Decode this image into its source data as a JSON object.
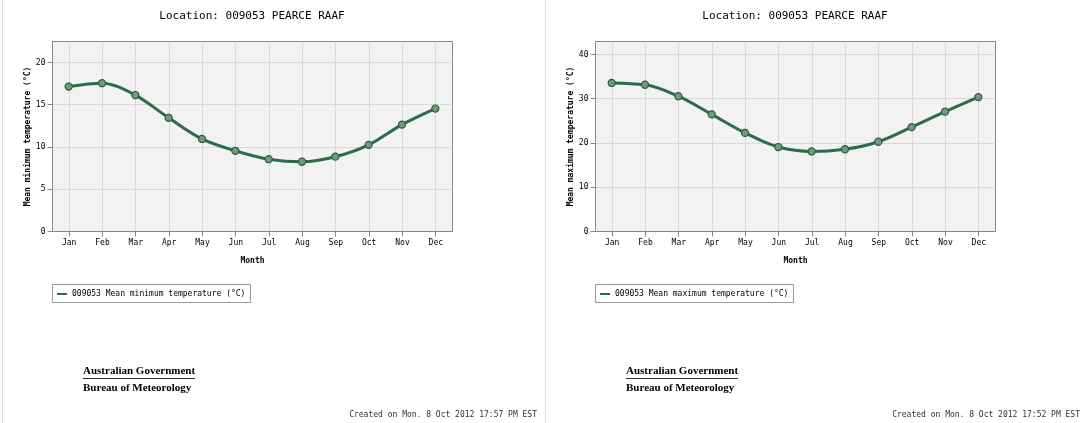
{
  "chart_data": [
    {
      "type": "line",
      "title": "Location: 009053 PEARCE RAAF",
      "xlabel": "Month",
      "ylabel": "Mean minimum temperature (°C)",
      "categories": [
        "Jan",
        "Feb",
        "Mar",
        "Apr",
        "May",
        "Jun",
        "Jul",
        "Aug",
        "Sep",
        "Oct",
        "Nov",
        "Dec"
      ],
      "series": [
        {
          "name": "009053 Mean minimum temperature (°C)",
          "color": "#2e6b4a",
          "values": [
            17.1,
            17.5,
            16.1,
            13.4,
            10.9,
            9.5,
            8.5,
            8.2,
            8.8,
            10.2,
            12.6,
            14.5
          ]
        }
      ],
      "ylim": [
        0,
        22.5
      ],
      "yticks": [
        0,
        5,
        10,
        15,
        20
      ],
      "grid": true,
      "marker": "circle",
      "legend": "bottom",
      "annotations": [
        "Australian Government",
        "Bureau of Meteorology",
        "Created on Mon. 8 Oct 2012 17:57 PM EST"
      ]
    },
    {
      "type": "line",
      "title": "Location: 009053 PEARCE RAAF",
      "xlabel": "Month",
      "ylabel": "Mean maximum temperature (°C)",
      "categories": [
        "Jan",
        "Feb",
        "Mar",
        "Apr",
        "May",
        "Jun",
        "Jul",
        "Aug",
        "Sep",
        "Oct",
        "Nov",
        "Dec"
      ],
      "series": [
        {
          "name": "009053 Mean maximum temperature (°C)",
          "color": "#2e6b4a",
          "values": [
            33.5,
            33.1,
            30.5,
            26.4,
            22.2,
            19.0,
            18.0,
            18.5,
            20.2,
            23.5,
            27.0,
            30.3
          ]
        }
      ],
      "ylim": [
        0,
        43
      ],
      "yticks": [
        0,
        10,
        20,
        30,
        40
      ],
      "grid": true,
      "marker": "circle",
      "legend": "bottom",
      "annotations": [
        "Australian Government",
        "Bureau of Meteorology",
        "Created on Mon. 8 Oct 2012 17:52 PM EST"
      ]
    }
  ]
}
